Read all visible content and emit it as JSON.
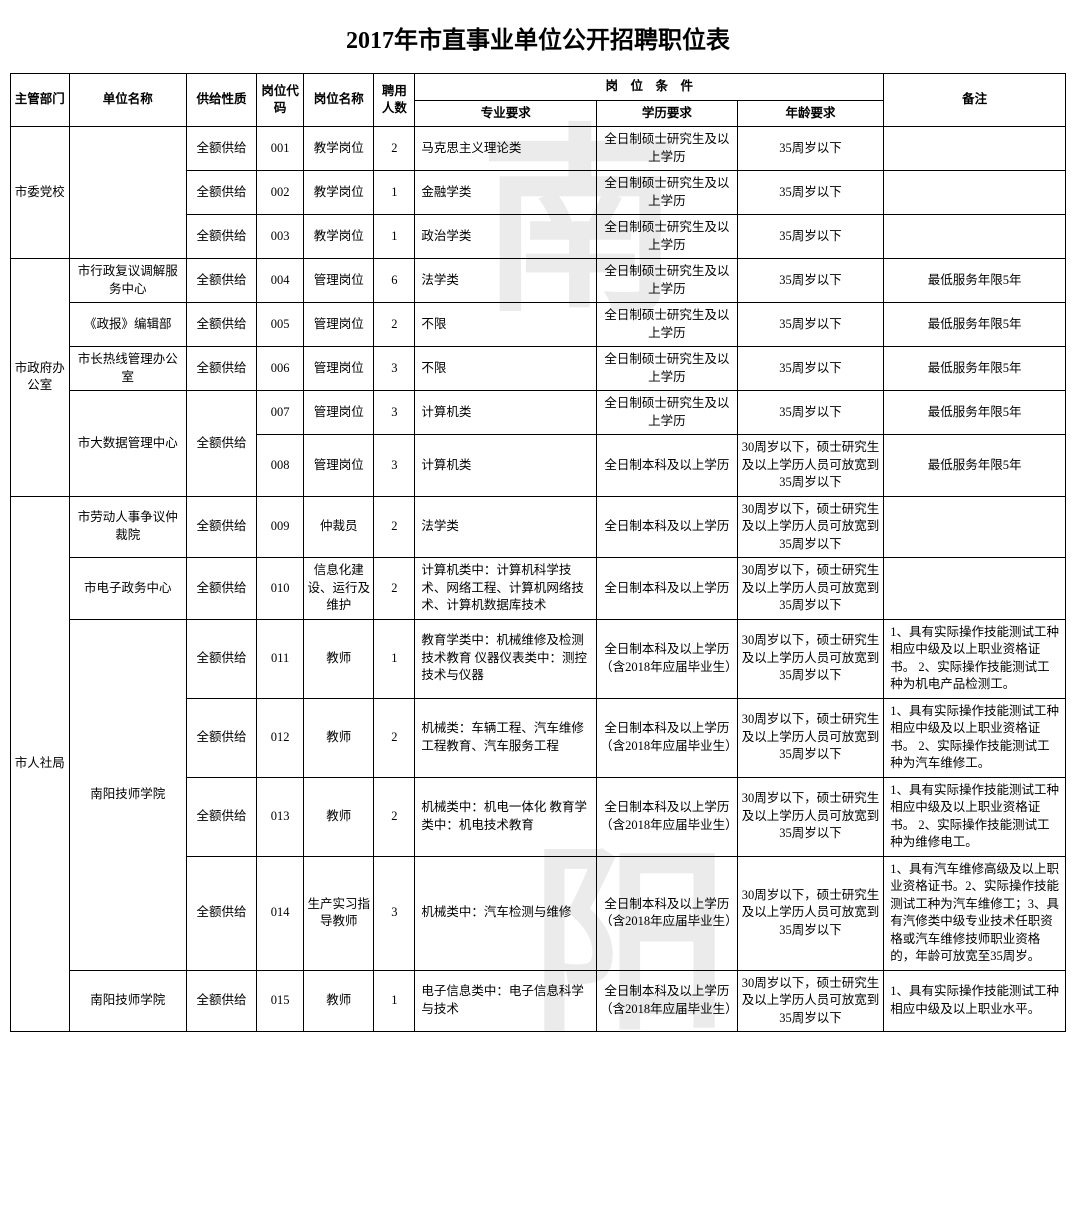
{
  "title": "2017年市直事业单位公开招聘职位表",
  "headers": {
    "dept": "主管部门",
    "unit": "单位名称",
    "supply": "供给性质",
    "code": "岗位代码",
    "posname": "岗位名称",
    "count": "聘用人数",
    "conditions": "岗　位　条　件",
    "major": "专业要求",
    "edu": "学历要求",
    "age": "年龄要求",
    "note": "备注"
  },
  "supply_full": "全额供给",
  "edu_master": "全日制硕士研究生及以上学历",
  "edu_bachelor": "全日制本科及以上学历",
  "edu_bachelor_2018": "全日制本科及以上学历（含2018年应届毕业生）",
  "age35": "35周岁以下",
  "age30_35": "30周岁以下，硕士研究生及以上学历人员可放宽到35周岁以下",
  "note_5yr": "最低服务年限5年",
  "rows": [
    {
      "code": "001",
      "posname": "教学岗位",
      "count": "2",
      "major": "马克思主义理论类"
    },
    {
      "code": "002",
      "posname": "教学岗位",
      "count": "1",
      "major": "金融学类"
    },
    {
      "code": "003",
      "posname": "教学岗位",
      "count": "1",
      "major": "政治学类"
    },
    {
      "code": "004",
      "posname": "管理岗位",
      "count": "6",
      "major": "法学类"
    },
    {
      "code": "005",
      "posname": "管理岗位",
      "count": "2",
      "major": "不限"
    },
    {
      "code": "006",
      "posname": "管理岗位",
      "count": "3",
      "major": "不限"
    },
    {
      "code": "007",
      "posname": "管理岗位",
      "count": "3",
      "major": "计算机类"
    },
    {
      "code": "008",
      "posname": "管理岗位",
      "count": "3",
      "major": "计算机类"
    },
    {
      "code": "009",
      "posname": "仲裁员",
      "count": "2",
      "major": "法学类"
    },
    {
      "code": "010",
      "posname": "信息化建设、运行及维护",
      "count": "2",
      "major": "计算机类中：计算机科学技术、网络工程、计算机网络技术、计算机数据库技术"
    },
    {
      "code": "011",
      "posname": "教师",
      "count": "1",
      "major": "教育学类中：机械维修及检测技术教育\n仪器仪表类中：测控技术与仪器",
      "note": "1、具有实际操作技能测试工种相应中级及以上职业资格证书。\n2、实际操作技能测试工种为机电产品检测工。"
    },
    {
      "code": "012",
      "posname": "教师",
      "count": "2",
      "major": "机械类：车辆工程、汽车维修工程教育、汽车服务工程",
      "note": "1、具有实际操作技能测试工种相应中级及以上职业资格证书。\n2、实际操作技能测试工种为汽车维修工。"
    },
    {
      "code": "013",
      "posname": "教师",
      "count": "2",
      "major": "机械类中：机电一体化\n教育学类中：机电技术教育",
      "note": "1、具有实际操作技能测试工种相应中级及以上职业资格证书。\n2、实际操作技能测试工种为维修电工。"
    },
    {
      "code": "014",
      "posname": "生产实习指导教师",
      "count": "3",
      "major": "机械类中：汽车检测与维修",
      "note": "1、具有汽车维修高级及以上职业资格证书。2、实际操作技能测试工种为汽车维修工；3、具有汽修类中级专业技术任职资格或汽车维修技师职业资格的，年龄可放宽至35周岁。"
    },
    {
      "code": "015",
      "posname": "教师",
      "count": "1",
      "major": "电子信息类中：电子信息科学与技术",
      "note": "1、具有实际操作技能测试工种相应中级及以上职业水平。"
    }
  ],
  "depts": {
    "d1": "市委党校",
    "d2": "市政府办公室",
    "d3": "市人社局"
  },
  "units": {
    "u4": "市行政复议调解服务中心",
    "u5": "《政报》编辑部",
    "u6": "市长热线管理办公室",
    "u7": "市大数据管理中心",
    "u9": "市劳动人事争议仲裁院",
    "u10": "市电子政务中心",
    "u11": "南阳技师学院",
    "u15": "南阳技师学院"
  }
}
